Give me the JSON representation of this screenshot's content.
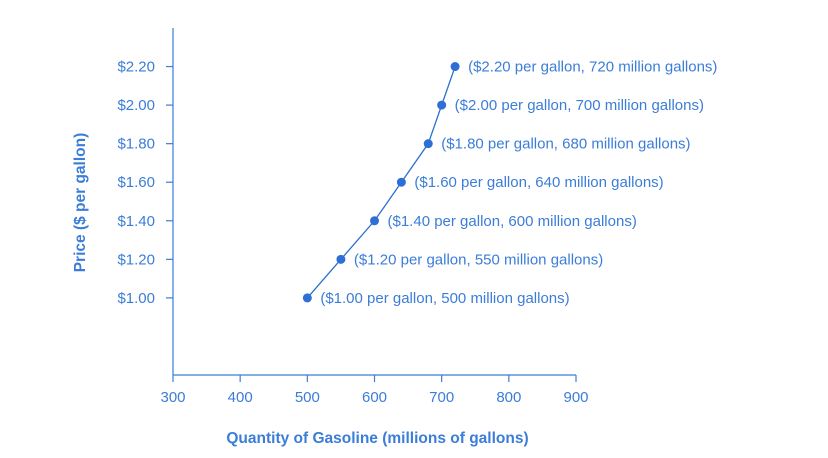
{
  "chart_data": {
    "type": "line",
    "xlabel": "Quantity of Gasoline (millions of gallons)",
    "ylabel": "Price ($ per gallon)",
    "xlim": [
      300,
      900
    ],
    "ylim": [
      0.6,
      2.4
    ],
    "x_ticks": [
      300,
      400,
      500,
      600,
      700,
      800,
      900
    ],
    "y_ticks": [
      1.0,
      1.2,
      1.4,
      1.6,
      1.8,
      2.0,
      2.2
    ],
    "y_tick_labels": [
      "$1.00",
      "$1.20",
      "$1.40",
      "$1.60",
      "$1.80",
      "$2.00",
      "$2.20"
    ],
    "grid": false,
    "series": [
      {
        "x": [
          500,
          550,
          600,
          640,
          680,
          700,
          720
        ],
        "y": [
          1.0,
          1.2,
          1.4,
          1.6,
          1.8,
          2.0,
          2.2
        ],
        "labels": [
          "($1.00 per gallon, 500 million gallons)",
          "($1.20 per gallon, 550 million gallons)",
          "($1.40 per gallon, 600 million gallons)",
          "($1.60 per gallon, 640 million gallons)",
          "($1.80 per gallon, 680 million gallons)",
          "($2.00 per gallon, 700 million gallons)",
          "($2.20 per gallon, 720 million gallons)"
        ]
      }
    ],
    "colors": {
      "axis": "#3b7dd8",
      "line": "#2c6fd1",
      "point": "#2d6fd6"
    }
  }
}
